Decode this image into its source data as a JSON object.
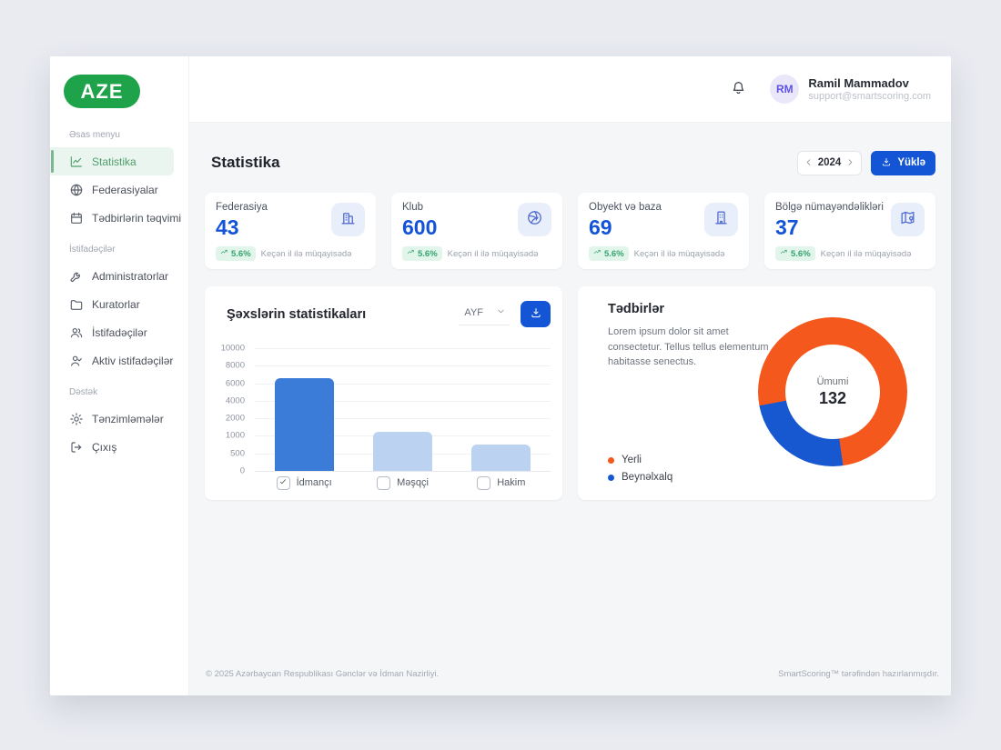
{
  "colors": {
    "primary_blue": "#1355d4",
    "logo_green": "#1ea24a",
    "active_green": "#4f9f6c",
    "badge_green": "#35a46f",
    "bar_primary": "#3b7cd9",
    "bar_muted": "#bcd2f1",
    "donut_orange": "#f4581c",
    "donut_blue": "#1757cf"
  },
  "header": {
    "user": {
      "initials": "RM",
      "name": "Ramil Mammadov",
      "email": "support@smartscoring.com"
    }
  },
  "sidebar": {
    "logo": "AZE",
    "sections": [
      {
        "label": "Əsas menyu",
        "items": [
          {
            "key": "statistika",
            "label": "Statistika",
            "icon": "line-chart-icon",
            "active": true
          },
          {
            "key": "federasiyalar",
            "label": "Federasiyalar",
            "icon": "globe-icon",
            "active": false
          },
          {
            "key": "tedbirlerin-teqvimi",
            "label": "Tədbirlərin təqvimi",
            "icon": "calendar-icon",
            "active": false
          }
        ]
      },
      {
        "label": "İstifadəçilər",
        "items": [
          {
            "key": "administratorlar",
            "label": "Administratorlar",
            "icon": "wrench-icon",
            "active": false
          },
          {
            "key": "kuratorlar",
            "label": "Kuratorlar",
            "icon": "folder-icon",
            "active": false
          },
          {
            "key": "istifadeciler",
            "label": "İstifadəçilər",
            "icon": "users-icon",
            "active": false
          },
          {
            "key": "aktiv-istifadeciler",
            "label": "Aktiv istifadəçilər",
            "icon": "user-check-icon",
            "active": false
          }
        ]
      },
      {
        "label": "Dəstək",
        "items": [
          {
            "key": "tenzimlemeler",
            "label": "Tənzimləmələr",
            "icon": "gear-icon",
            "active": false
          },
          {
            "key": "cixis",
            "label": "Çıxış",
            "icon": "logout-icon",
            "active": false
          }
        ]
      }
    ]
  },
  "page": {
    "title": "Statistika",
    "year": "2024",
    "download_label": "Yüklə"
  },
  "stat_cards": [
    {
      "key": "federasiya",
      "title": "Federasiya",
      "value": "43",
      "icon": "federation-building-icon",
      "badge": "5.6%",
      "note": "Keçən il ilə müqayisədə"
    },
    {
      "key": "klub",
      "title": "Klub",
      "value": "600",
      "icon": "volleyball-icon",
      "badge": "5.6%",
      "note": "Keçən il ilə müqayisədə"
    },
    {
      "key": "obyekt-ve-baza",
      "title": "Obyekt və baza",
      "value": "69",
      "icon": "building-icon",
      "badge": "5.6%",
      "note": "Keçən il ilə müqayisədə"
    },
    {
      "key": "bolge-numayendelikeri",
      "title": "Bölgə nümayəndəlikləri",
      "value": "37",
      "icon": "map-pin-icon",
      "badge": "5.6%",
      "note": "Keçən il ilə müqayisədə"
    }
  ],
  "chart_card": {
    "title": "Şəxslərin statistikaları",
    "select_value": "AYF"
  },
  "events_card": {
    "title": "Tədbirlər",
    "description": "Lorem ipsum dolor sit amet consectetur. Tellus tellus elementum habitasse senectus.",
    "center_label": "Ümumi",
    "center_value": "132"
  },
  "chart_data": [
    {
      "type": "bar",
      "title": "Şəxslərin statistikaları",
      "categories": [
        "İdmançı",
        "Məşqçi",
        "Hakim"
      ],
      "values": [
        6600,
        1250,
        750
      ],
      "checked": [
        true,
        false,
        false
      ],
      "yticks": [
        0,
        500,
        1000,
        2000,
        4000,
        6000,
        8000,
        10000
      ],
      "ytick_scale": "categorical-equal-spacing",
      "grid": true,
      "bar_colors": [
        "#3b7cd9",
        "#bcd2f1",
        "#bcd2f1"
      ]
    },
    {
      "type": "donut",
      "title": "Tədbirlər",
      "total_label": "Ümumi",
      "total": 132,
      "segments": [
        {
          "label": "Yerli",
          "value": 100,
          "color": "#f4581c"
        },
        {
          "label": "Beynəlxalq",
          "value": 32,
          "color": "#1757cf"
        }
      ],
      "minor_segment_start_deg": 172,
      "legend_position": "bottom-left"
    }
  ],
  "footer": {
    "left": "© 2025 Azərbaycan Respublikası Gənclər və İdman Nazirliyi.",
    "right": "SmartScoring™ tərəfindən hazırlanmışdır."
  }
}
